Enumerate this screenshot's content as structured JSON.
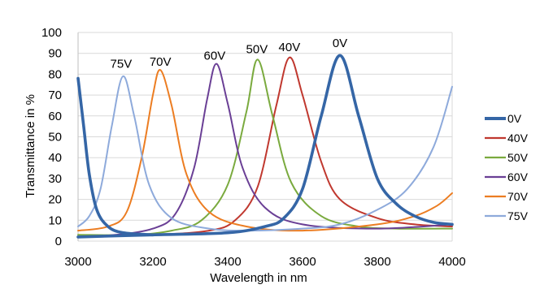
{
  "chart_data": {
    "type": "line",
    "title": "",
    "xlabel": "Wavelength in nm",
    "ylabel": "Transmittance in %",
    "xlim": [
      3000,
      4000
    ],
    "ylim": [
      0,
      100
    ],
    "x_ticks": [
      "3000",
      "3200",
      "3400",
      "3600",
      "3800",
      "4000"
    ],
    "y_ticks": [
      "0",
      "10",
      "20",
      "30",
      "40",
      "50",
      "60",
      "70",
      "80",
      "90",
      "100"
    ],
    "grid": "horizontal",
    "legend_position": "right",
    "series": [
      {
        "name": "0V",
        "color": "#3566a6",
        "line_width": "thick",
        "points": [
          [
            3000,
            2
          ],
          [
            3200,
            3
          ],
          [
            3400,
            4
          ],
          [
            3500,
            7
          ],
          [
            3550,
            11
          ],
          [
            3600,
            25
          ],
          [
            3650,
            60
          ],
          [
            3700,
            89
          ],
          [
            3750,
            60
          ],
          [
            3800,
            30
          ],
          [
            3850,
            18
          ],
          [
            3900,
            12
          ],
          [
            3950,
            9
          ],
          [
            4000,
            8
          ]
        ]
      },
      {
        "name": "40V",
        "color": "#c0382f",
        "line_width": "normal",
        "points": [
          [
            3000,
            2
          ],
          [
            3200,
            3
          ],
          [
            3350,
            5
          ],
          [
            3420,
            10
          ],
          [
            3480,
            26
          ],
          [
            3530,
            65
          ],
          [
            3565,
            88
          ],
          [
            3600,
            70
          ],
          [
            3650,
            38
          ],
          [
            3700,
            20
          ],
          [
            3800,
            11
          ],
          [
            3900,
            8
          ],
          [
            4000,
            7
          ]
        ]
      },
      {
        "name": "50V",
        "color": "#7aaa3e",
        "line_width": "normal",
        "points": [
          [
            3000,
            3
          ],
          [
            3150,
            3
          ],
          [
            3250,
            5
          ],
          [
            3330,
            10
          ],
          [
            3400,
            27
          ],
          [
            3450,
            62
          ],
          [
            3480,
            87
          ],
          [
            3520,
            60
          ],
          [
            3570,
            28
          ],
          [
            3650,
            12
          ],
          [
            3750,
            7
          ],
          [
            3850,
            6
          ],
          [
            4000,
            6
          ]
        ]
      },
      {
        "name": "60V",
        "color": "#6a3f95",
        "line_width": "normal",
        "points": [
          [
            3000,
            2
          ],
          [
            3100,
            3
          ],
          [
            3200,
            6
          ],
          [
            3260,
            13
          ],
          [
            3310,
            35
          ],
          [
            3345,
            68
          ],
          [
            3370,
            85
          ],
          [
            3400,
            66
          ],
          [
            3440,
            35
          ],
          [
            3500,
            16
          ],
          [
            3600,
            8
          ],
          [
            3800,
            6
          ],
          [
            4000,
            8
          ]
        ]
      },
      {
        "name": "70V",
        "color": "#ec7d22",
        "line_width": "normal",
        "points": [
          [
            3000,
            5
          ],
          [
            3080,
            7
          ],
          [
            3130,
            14
          ],
          [
            3170,
            40
          ],
          [
            3200,
            70
          ],
          [
            3220,
            82
          ],
          [
            3250,
            65
          ],
          [
            3290,
            32
          ],
          [
            3350,
            14
          ],
          [
            3450,
            7
          ],
          [
            3600,
            5
          ],
          [
            3800,
            8
          ],
          [
            3900,
            12
          ],
          [
            3960,
            17
          ],
          [
            4000,
            23
          ]
        ]
      },
      {
        "name": "75V",
        "color": "#8eaadb",
        "line_width": "normal",
        "points": [
          [
            3000,
            7
          ],
          [
            3030,
            12
          ],
          [
            3060,
            25
          ],
          [
            3090,
            55
          ],
          [
            3120,
            79
          ],
          [
            3150,
            60
          ],
          [
            3190,
            27
          ],
          [
            3250,
            11
          ],
          [
            3350,
            6
          ],
          [
            3450,
            5
          ],
          [
            3600,
            6
          ],
          [
            3700,
            8
          ],
          [
            3800,
            15
          ],
          [
            3880,
            25
          ],
          [
            3950,
            45
          ],
          [
            4000,
            74
          ]
        ]
      },
      {
        "name": "0V-left-edge",
        "color": "#3566a6",
        "line_width": "thick",
        "hidden_legend": true,
        "points": [
          [
            3000,
            78
          ],
          [
            3015,
            55
          ],
          [
            3030,
            32
          ],
          [
            3050,
            15
          ],
          [
            3080,
            7
          ],
          [
            3120,
            4
          ],
          [
            3200,
            3
          ]
        ]
      }
    ],
    "annotations": [
      {
        "text": "75V",
        "x": 3115,
        "y": 83
      },
      {
        "text": "70V",
        "x": 3220,
        "y": 84
      },
      {
        "text": "60V",
        "x": 3365,
        "y": 87
      },
      {
        "text": "50V",
        "x": 3478,
        "y": 90
      },
      {
        "text": "40V",
        "x": 3565,
        "y": 91
      },
      {
        "text": "0V",
        "x": 3700,
        "y": 93
      }
    ],
    "legend": [
      {
        "name": "0V",
        "color": "#3566a6"
      },
      {
        "name": "40V",
        "color": "#c0382f"
      },
      {
        "name": "50V",
        "color": "#7aaa3e"
      },
      {
        "name": "60V",
        "color": "#6a3f95"
      },
      {
        "name": "70V",
        "color": "#ec7d22"
      },
      {
        "name": "75V",
        "color": "#8eaadb"
      }
    ]
  }
}
